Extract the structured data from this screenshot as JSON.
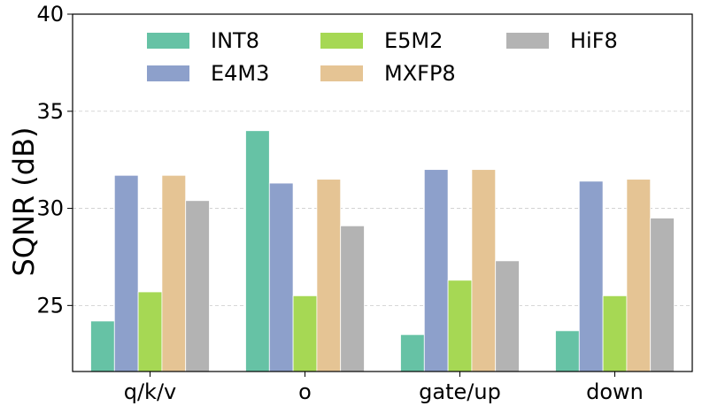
{
  "chart_data": {
    "type": "bar",
    "title": "",
    "xlabel": "",
    "ylabel": "SQNR (dB)",
    "ylim": [
      21.6,
      40
    ],
    "yticks": [
      25,
      30,
      35,
      40
    ],
    "grid": "y-dashed",
    "legend_position": "top",
    "categories": [
      "q/k/v",
      "o",
      "gate/up",
      "down"
    ],
    "series": [
      {
        "name": "INT8",
        "color": "#66c2a5",
        "values": [
          24.2,
          34.0,
          23.5,
          23.7
        ]
      },
      {
        "name": "E4M3",
        "color": "#8da0cb",
        "values": [
          31.7,
          31.3,
          32.0,
          31.4
        ]
      },
      {
        "name": "E5M2",
        "color": "#a6d854",
        "values": [
          25.7,
          25.5,
          26.3,
          25.5
        ]
      },
      {
        "name": "MXFP8",
        "color": "#e5c494",
        "values": [
          31.7,
          31.5,
          32.0,
          31.5
        ]
      },
      {
        "name": "HiF8",
        "color": "#b3b3b3",
        "values": [
          30.4,
          29.1,
          27.3,
          29.5
        ]
      }
    ]
  }
}
